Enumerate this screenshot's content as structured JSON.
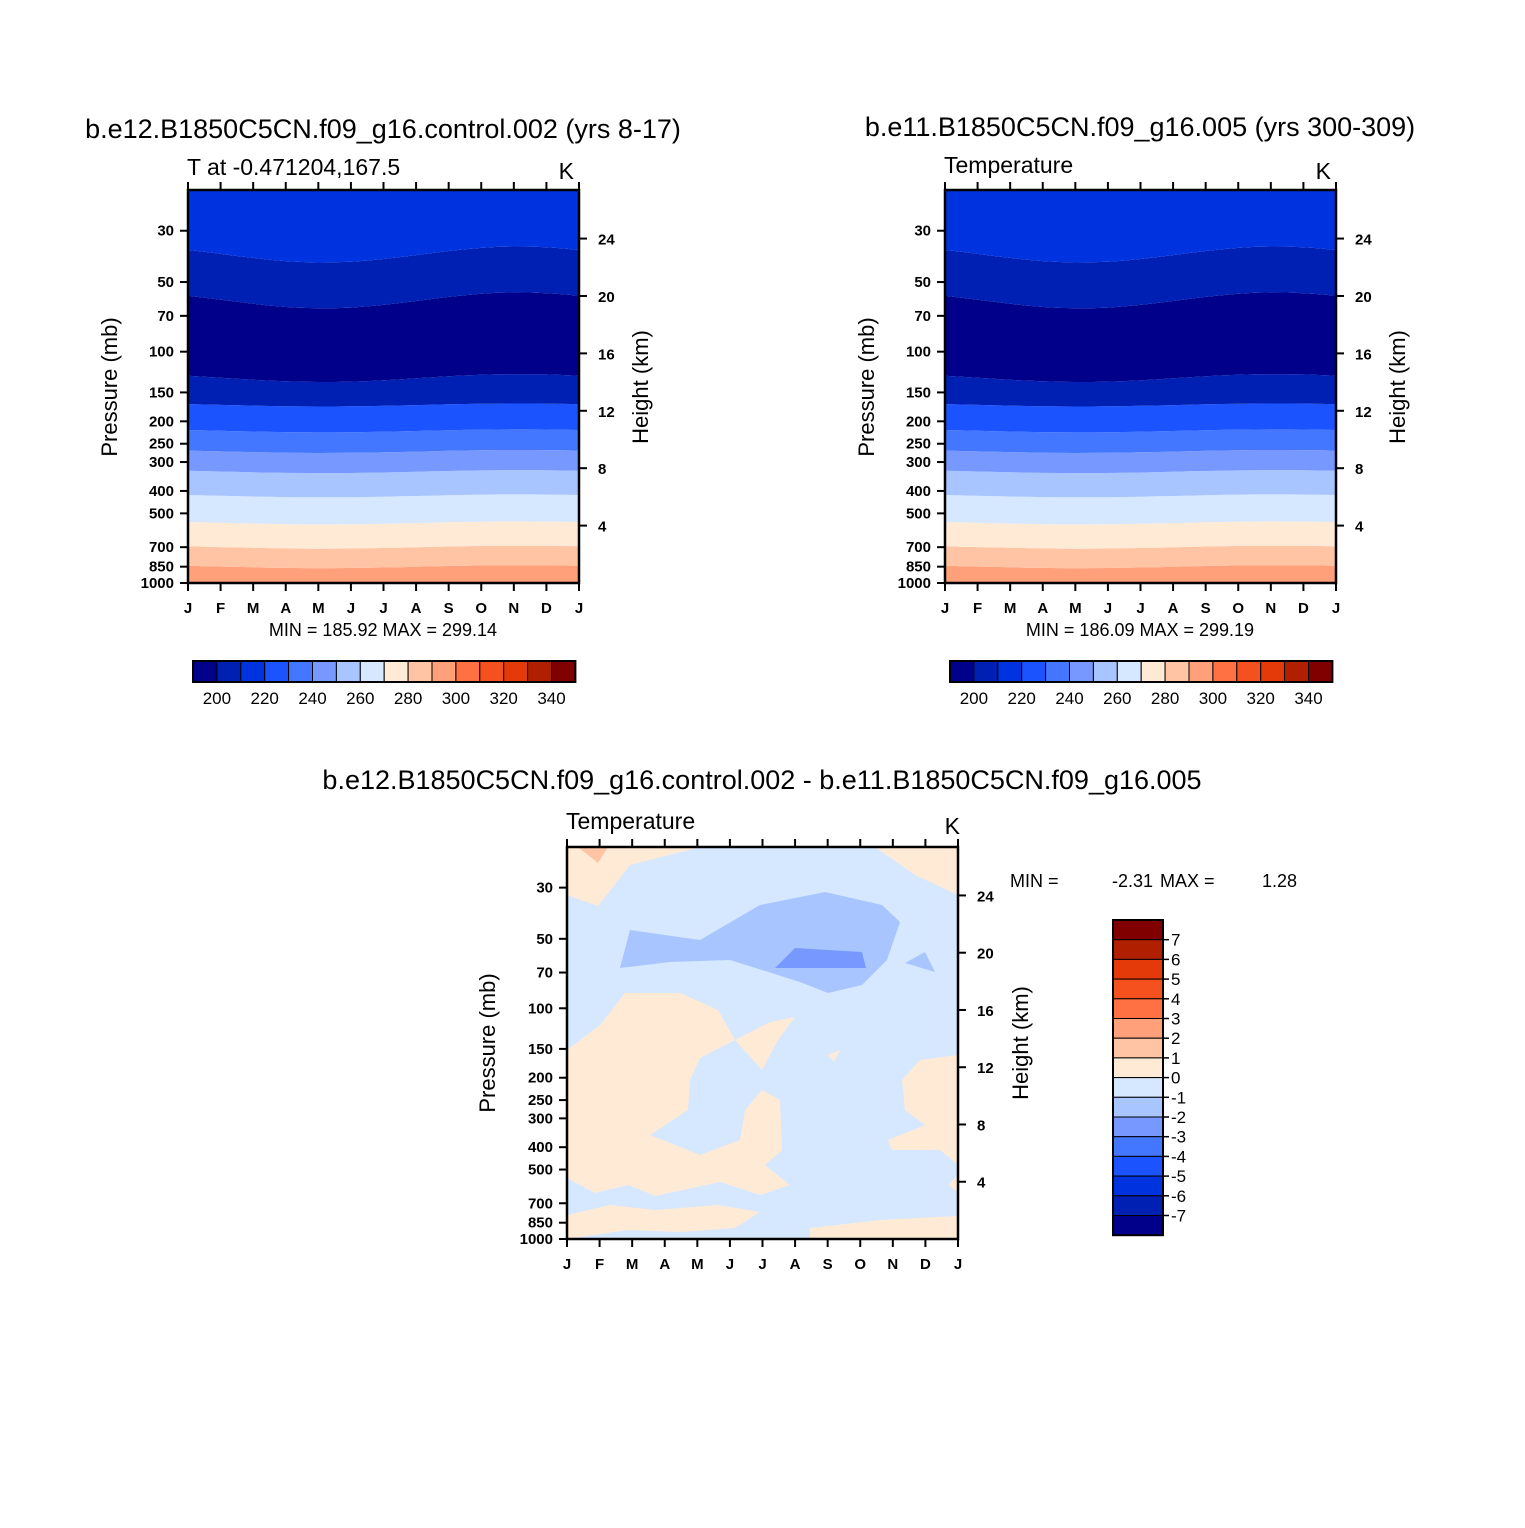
{
  "chart_data": [
    {
      "type": "heatmap",
      "title": "b.e12.B1850C5CN.f09_g16.control.002 (yrs 8-17)",
      "subtitle": "T at -0.471204,167.5",
      "units": "K",
      "ylabel": "Pressure (mb)",
      "ylabel_right": "Height (km)",
      "x": [
        "J",
        "F",
        "M",
        "A",
        "M",
        "J",
        "J",
        "A",
        "S",
        "O",
        "N",
        "D",
        "J"
      ],
      "yticks": [
        "30",
        "50",
        "70",
        "100",
        "150",
        "200",
        "250",
        "300",
        "400",
        "500",
        "700",
        "850",
        "1000"
      ],
      "yticks_right": [
        "24",
        "20",
        "16",
        "12",
        "8",
        "4"
      ],
      "stats": "MIN = 185.92 MAX = 299.14",
      "min": 185.92,
      "max": 299.14,
      "colorbar": {
        "orientation": "horizontal",
        "labels": [
          "200",
          "220",
          "240",
          "260",
          "280",
          "300",
          "320",
          "340"
        ],
        "colors": [
          "#00008b",
          "#0020b4",
          "#0033e0",
          "#1a53ff",
          "#4477ff",
          "#7799ff",
          "#a8c5ff",
          "#d6e8ff",
          "#ffead6",
          "#ffc4a3",
          "#ffa07a",
          "#ff7043",
          "#f4511e",
          "#e43a0a",
          "#b02000",
          "#800000"
        ]
      },
      "bands": [
        {
          "pressure": "1000-850",
          "color": "#ffa07a"
        },
        {
          "pressure": "850-700",
          "color": "#ffc4a3"
        },
        {
          "pressure": "700-550",
          "color": "#ffead6"
        },
        {
          "pressure": "550-420",
          "color": "#d6e8ff"
        },
        {
          "pressure": "420-330",
          "color": "#a8c5ff"
        },
        {
          "pressure": "330-270",
          "color": "#7799ff"
        },
        {
          "pressure": "270-220",
          "color": "#4477ff"
        },
        {
          "pressure": "220-170",
          "color": "#1a53ff"
        },
        {
          "pressure": "170-130",
          "color": "#0020b4"
        },
        {
          "pressure": "130-60",
          "color": "#00008b"
        },
        {
          "pressure": "60-38",
          "color": "#0020b4"
        },
        {
          "pressure": "38-20",
          "color": "#0033e0"
        }
      ]
    },
    {
      "type": "heatmap",
      "title": "b.e11.B1850C5CN.f09_g16.005 (yrs 300-309)",
      "subtitle": "Temperature",
      "units": "K",
      "ylabel": "Pressure (mb)",
      "ylabel_right": "Height (km)",
      "x": [
        "J",
        "F",
        "M",
        "A",
        "M",
        "J",
        "J",
        "A",
        "S",
        "O",
        "N",
        "D",
        "J"
      ],
      "yticks": [
        "30",
        "50",
        "70",
        "100",
        "150",
        "200",
        "250",
        "300",
        "400",
        "500",
        "700",
        "850",
        "1000"
      ],
      "yticks_right": [
        "24",
        "20",
        "16",
        "12",
        "8",
        "4"
      ],
      "stats": "MIN = 186.09 MAX = 299.19",
      "min": 186.09,
      "max": 299.19,
      "colorbar": {
        "orientation": "horizontal",
        "labels": [
          "200",
          "220",
          "240",
          "260",
          "280",
          "300",
          "320",
          "340"
        ]
      }
    },
    {
      "type": "heatmap",
      "title": "b.e12.B1850C5CN.f09_g16.control.002 - b.e11.B1850C5CN.f09_g16.005",
      "subtitle": "Temperature",
      "units": "K",
      "ylabel": "Pressure (mb)",
      "ylabel_right": "Height (km)",
      "x": [
        "J",
        "F",
        "M",
        "A",
        "M",
        "J",
        "J",
        "A",
        "S",
        "O",
        "N",
        "D",
        "J"
      ],
      "yticks": [
        "30",
        "50",
        "70",
        "100",
        "150",
        "200",
        "250",
        "300",
        "400",
        "500",
        "700",
        "850",
        "1000"
      ],
      "yticks_right": [
        "24",
        "20",
        "16",
        "12",
        "8",
        "4"
      ],
      "stats_min_label": "MIN =",
      "stats_min": "-2.31",
      "stats_max_label": "MAX =",
      "stats_max": "1.28",
      "colorbar": {
        "orientation": "vertical",
        "labels": [
          "7",
          "6",
          "5",
          "4",
          "3",
          "2",
          "1",
          "0",
          "-1",
          "-2",
          "-3",
          "-4",
          "-5",
          "-6",
          "-7"
        ],
        "colors": [
          "#800000",
          "#b02000",
          "#e43a0a",
          "#f4511e",
          "#ff7043",
          "#ffa07a",
          "#ffc4a3",
          "#ffead6",
          "#d6e8ff",
          "#a8c5ff",
          "#7799ff",
          "#4477ff",
          "#1a53ff",
          "#0033e0",
          "#0020b4",
          "#00008b"
        ]
      }
    }
  ]
}
